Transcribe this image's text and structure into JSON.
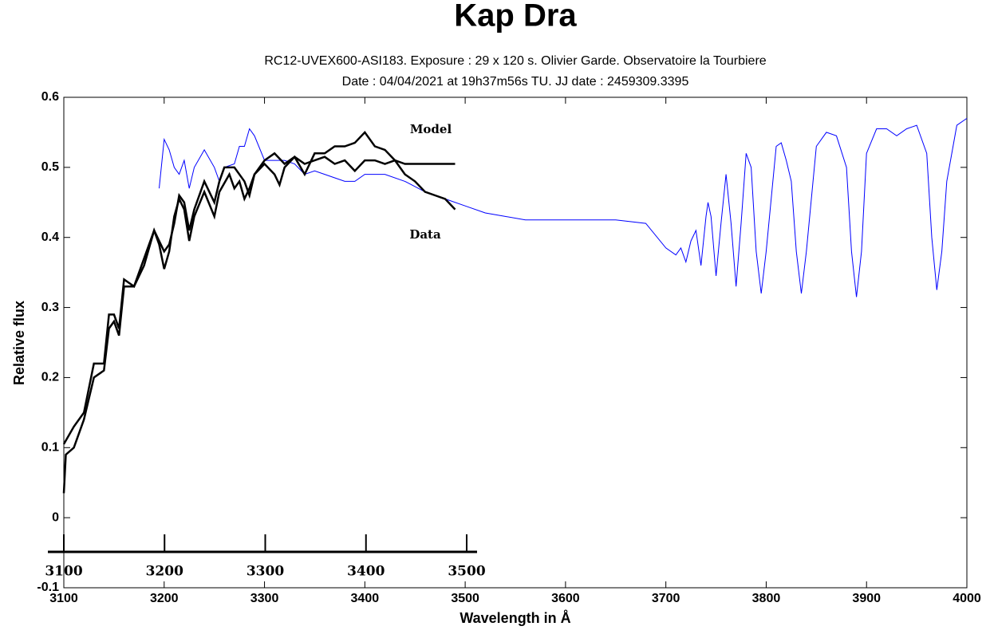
{
  "chart_data": {
    "type": "line",
    "title": "Kap Dra",
    "subtitle": [
      "RC12-UVEX600-ASI183. Exposure : 29 x 120 s. Olivier Garde. Observatoire la Tourbiere",
      "Date : 04/04/2021 at 19h37m56s TU. JJ date : 2459309.3395"
    ],
    "xlabel": "Wavelength in Å",
    "ylabel": "Relative flux",
    "xlim": [
      3100,
      4000
    ],
    "ylim": [
      -0.1,
      0.6
    ],
    "xticks": [
      3100,
      3200,
      3300,
      3400,
      3500,
      3600,
      3700,
      3800,
      3900,
      4000
    ],
    "yticks": [
      -0.1,
      0,
      0.1,
      0.2,
      0.3,
      0.4,
      0.5,
      0.6
    ],
    "series": [
      {
        "color": "#0000ff",
        "x": [
          3195,
          3200,
          3205,
          3210,
          3215,
          3220,
          3225,
          3230,
          3240,
          3250,
          3255,
          3260,
          3270,
          3275,
          3280,
          3285,
          3290,
          3300,
          3310,
          3320,
          3330,
          3340,
          3350,
          3360,
          3370,
          3380,
          3390,
          3400,
          3420,
          3440,
          3460,
          3480,
          3500,
          3520,
          3540,
          3560,
          3600,
          3650,
          3680,
          3700,
          3710,
          3715,
          3720,
          3725,
          3730,
          3735,
          3740,
          3742,
          3745,
          3750,
          3755,
          3760,
          3765,
          3770,
          3775,
          3780,
          3785,
          3790,
          3795,
          3800,
          3810,
          3815,
          3820,
          3825,
          3830,
          3835,
          3840,
          3850,
          3860,
          3870,
          3880,
          3885,
          3890,
          3895,
          3900,
          3910,
          3920,
          3930,
          3940,
          3950,
          3960,
          3965,
          3970,
          3975,
          3980,
          3990,
          4000
        ],
        "values": [
          0.47,
          0.54,
          0.525,
          0.5,
          0.49,
          0.51,
          0.47,
          0.5,
          0.525,
          0.5,
          0.48,
          0.5,
          0.505,
          0.53,
          0.53,
          0.555,
          0.545,
          0.51,
          0.51,
          0.51,
          0.505,
          0.49,
          0.495,
          0.49,
          0.485,
          0.48,
          0.48,
          0.49,
          0.49,
          0.48,
          0.465,
          0.455,
          0.445,
          0.435,
          0.43,
          0.425,
          0.425,
          0.425,
          0.42,
          0.385,
          0.375,
          0.385,
          0.365,
          0.395,
          0.41,
          0.36,
          0.43,
          0.45,
          0.43,
          0.345,
          0.42,
          0.49,
          0.42,
          0.33,
          0.42,
          0.52,
          0.5,
          0.38,
          0.32,
          0.38,
          0.53,
          0.535,
          0.51,
          0.48,
          0.38,
          0.32,
          0.38,
          0.53,
          0.55,
          0.545,
          0.5,
          0.38,
          0.315,
          0.38,
          0.52,
          0.555,
          0.555,
          0.545,
          0.555,
          0.56,
          0.52,
          0.4,
          0.325,
          0.38,
          0.48,
          0.56,
          0.57
        ]
      },
      {
        "name": "Data",
        "color": "#000000",
        "x": [
          3100,
          3102,
          3110,
          3120,
          3130,
          3140,
          3145,
          3150,
          3155,
          3160,
          3170,
          3180,
          3190,
          3200,
          3205,
          3210,
          3215,
          3220,
          3225,
          3230,
          3240,
          3250,
          3255,
          3260,
          3270,
          3280,
          3285,
          3290,
          3300,
          3310,
          3320,
          3330,
          3340,
          3350,
          3360,
          3370,
          3380,
          3390,
          3400,
          3410,
          3420,
          3430,
          3440,
          3450,
          3460,
          3470,
          3480,
          3490
        ],
        "values": [
          0.035,
          0.09,
          0.1,
          0.14,
          0.2,
          0.21,
          0.27,
          0.28,
          0.26,
          0.33,
          0.33,
          0.36,
          0.41,
          0.38,
          0.39,
          0.42,
          0.46,
          0.45,
          0.41,
          0.44,
          0.48,
          0.45,
          0.48,
          0.5,
          0.5,
          0.48,
          0.46,
          0.49,
          0.51,
          0.52,
          0.505,
          0.515,
          0.49,
          0.52,
          0.52,
          0.53,
          0.53,
          0.535,
          0.55,
          0.53,
          0.525,
          0.51,
          0.49,
          0.48,
          0.465,
          0.46,
          0.455,
          0.44
        ]
      },
      {
        "name": "Model",
        "color": "#000000",
        "x": [
          3100,
          3110,
          3120,
          3130,
          3140,
          3145,
          3150,
          3155,
          3160,
          3170,
          3180,
          3190,
          3195,
          3200,
          3205,
          3210,
          3215,
          3220,
          3225,
          3230,
          3240,
          3250,
          3255,
          3265,
          3270,
          3275,
          3280,
          3285,
          3290,
          3300,
          3310,
          3315,
          3320,
          3330,
          3340,
          3350,
          3360,
          3370,
          3380,
          3390,
          3400,
          3410,
          3420,
          3430,
          3440,
          3460,
          3490
        ],
        "values": [
          0.105,
          0.13,
          0.15,
          0.22,
          0.22,
          0.29,
          0.29,
          0.27,
          0.34,
          0.33,
          0.37,
          0.41,
          0.39,
          0.355,
          0.38,
          0.43,
          0.455,
          0.44,
          0.395,
          0.43,
          0.465,
          0.43,
          0.465,
          0.49,
          0.47,
          0.48,
          0.455,
          0.47,
          0.49,
          0.505,
          0.49,
          0.475,
          0.5,
          0.515,
          0.505,
          0.51,
          0.515,
          0.505,
          0.51,
          0.495,
          0.51,
          0.51,
          0.505,
          0.51,
          0.505,
          0.505,
          0.505
        ]
      }
    ],
    "inset_axis": {
      "xlim": [
        3100,
        3500
      ],
      "xticks": [
        3100,
        3200,
        3300,
        3400,
        3500
      ]
    }
  }
}
